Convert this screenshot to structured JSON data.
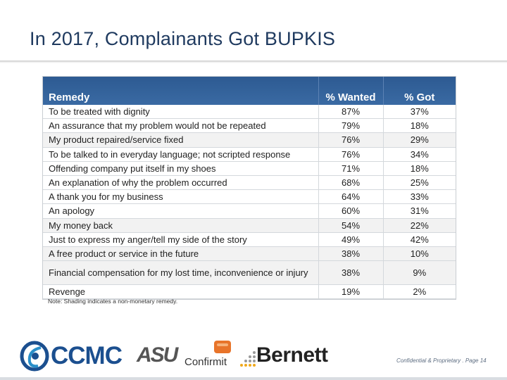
{
  "slide": {
    "title": "In 2017, Complainants Got BUPKIS"
  },
  "table": {
    "headers": {
      "remedy": "Remedy",
      "wanted": "% Wanted",
      "got": "% Got"
    },
    "rows": [
      {
        "remedy": "To be treated with dignity",
        "wanted": "87%",
        "got": "37%",
        "shaded": false
      },
      {
        "remedy": "An assurance that my problem would not be repeated",
        "wanted": "79%",
        "got": "18%",
        "shaded": false
      },
      {
        "remedy": "My product repaired/service fixed",
        "wanted": "76%",
        "got": "29%",
        "shaded": true
      },
      {
        "remedy": "To be talked to in everyday language; not scripted response",
        "wanted": "76%",
        "got": "34%",
        "shaded": false
      },
      {
        "remedy": "Offending company put itself in my shoes",
        "wanted": "71%",
        "got": "18%",
        "shaded": false
      },
      {
        "remedy": "An explanation of why the problem occurred",
        "wanted": "68%",
        "got": "25%",
        "shaded": false
      },
      {
        "remedy": "A thank you for my business",
        "wanted": "64%",
        "got": "33%",
        "shaded": false
      },
      {
        "remedy": "An apology",
        "wanted": "60%",
        "got": "31%",
        "shaded": false
      },
      {
        "remedy": "My money back",
        "wanted": "54%",
        "got": "22%",
        "shaded": true
      },
      {
        "remedy": "Just to express my anger/tell my side of the story",
        "wanted": "49%",
        "got": "42%",
        "shaded": false
      },
      {
        "remedy": "A free product or service in the future",
        "wanted": "38%",
        "got": "10%",
        "shaded": true
      },
      {
        "remedy": "Financial compensation for my lost time, inconvenience or injury",
        "wanted": "38%",
        "got": "9%",
        "shaded": true
      },
      {
        "remedy": "Revenge",
        "wanted": "19%",
        "got": "2%",
        "shaded": false
      }
    ]
  },
  "note": "Note: Shading  indicates  a non-monetary remedy.",
  "logos": {
    "ccmc": {
      "text": "CCMC",
      "icon": "ccmc-swirl-icon",
      "color": "#1b4f8f"
    },
    "asu": {
      "text": "ASU",
      "color": "#555555"
    },
    "confirmit": {
      "text": "Confirmit",
      "icon": "confirmit-badge-icon",
      "color": "#e8742a"
    },
    "bernett": {
      "text": "Bernett",
      "icon": "bernett-dots-icon",
      "color": "#222222"
    }
  },
  "footer": {
    "text": "Confidential & Proprietary . Page 14"
  },
  "colors": {
    "header_blue": "#3a6aa3",
    "title_blue": "#1f3a5f",
    "shaded_row": "#f2f2f2"
  }
}
